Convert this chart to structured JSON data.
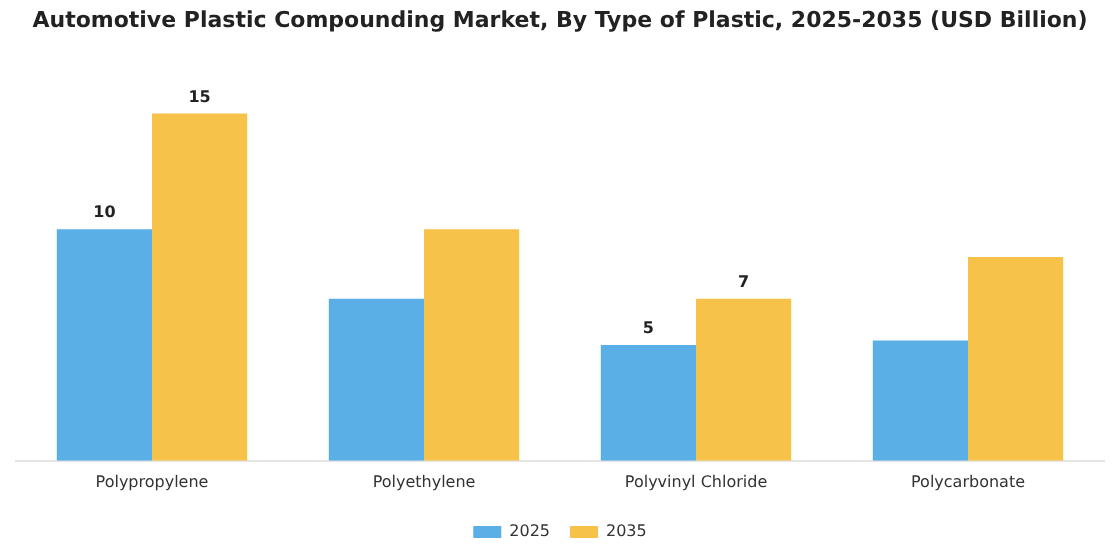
{
  "chart_data": {
    "type": "bar",
    "title": "Automotive Plastic Compounding Market, By Type of Plastic, 2025-2035 (USD Billion)",
    "categories": [
      "Polypropylene",
      "Polyethylene",
      "Polyvinyl Chloride",
      "Polycarbonate"
    ],
    "series": [
      {
        "name": "2025",
        "color": "#5ab0e6",
        "values": [
          10,
          7,
          5,
          5.2
        ],
        "value_labels": [
          "10",
          null,
          "5",
          null
        ]
      },
      {
        "name": "2035",
        "color": "#f7c24a",
        "values": [
          15,
          10,
          7,
          8.8
        ],
        "value_labels": [
          "15",
          null,
          "7",
          null
        ]
      }
    ],
    "grid": false,
    "legend": "bottom"
  }
}
